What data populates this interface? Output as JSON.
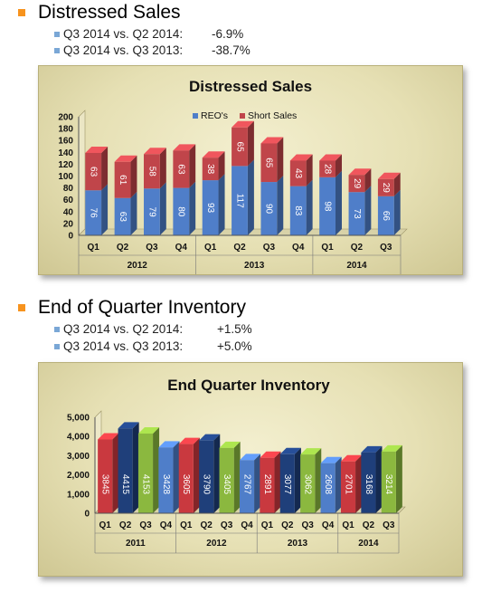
{
  "section1": {
    "heading": "Distressed Sales",
    "stats": [
      {
        "label": "Q3 2014 vs. Q2 2014:",
        "value": "-6.9%"
      },
      {
        "label": "Q3 2014 vs. Q3 2013:",
        "value": "-38.7%"
      }
    ]
  },
  "section2": {
    "heading": "End of Quarter Inventory",
    "stats": [
      {
        "label": "Q3 2014 vs. Q2 2014:",
        "value": "+1.5%"
      },
      {
        "label": "Q3 2014 vs. Q3 2013:",
        "value": "+5.0%"
      }
    ]
  },
  "chart_data": [
    {
      "type": "bar",
      "stacked": true,
      "title": "Distressed Sales",
      "legend_position": "top-right",
      "groups": [
        "2012",
        "2013",
        "2014"
      ],
      "categories": [
        "Q1",
        "Q2",
        "Q3",
        "Q4",
        "Q1",
        "Q2",
        "Q3",
        "Q4",
        "Q1",
        "Q2",
        "Q3"
      ],
      "category_group": [
        0,
        0,
        0,
        0,
        1,
        1,
        1,
        1,
        2,
        2,
        2
      ],
      "series": [
        {
          "name": "REO's",
          "color": "#4f7ec9",
          "values": [
            76,
            63,
            79,
            80,
            93,
            117,
            90,
            83,
            98,
            73,
            66
          ]
        },
        {
          "name": "Short Sales",
          "color": "#c0454a",
          "values": [
            63,
            61,
            58,
            63,
            38,
            65,
            65,
            43,
            28,
            29,
            29
          ]
        }
      ],
      "ylim": [
        0,
        200
      ],
      "yticks": [
        "0",
        "20",
        "40",
        "60",
        "80",
        "100",
        "120",
        "140",
        "160",
        "180",
        "200"
      ],
      "grid": false
    },
    {
      "type": "bar",
      "title": "End Quarter Inventory",
      "groups": [
        "2011",
        "2012",
        "2013",
        "2014"
      ],
      "categories": [
        "Q1",
        "Q2",
        "Q3",
        "Q4",
        "Q1",
        "Q2",
        "Q3",
        "Q4",
        "Q1",
        "Q2",
        "Q3",
        "Q4",
        "Q1",
        "Q2",
        "Q3"
      ],
      "category_group": [
        0,
        0,
        0,
        0,
        1,
        1,
        1,
        1,
        2,
        2,
        2,
        2,
        3,
        3,
        3
      ],
      "values": [
        3845,
        4415,
        4153,
        3428,
        3605,
        3790,
        3405,
        2767,
        2891,
        3077,
        3062,
        2608,
        2701,
        3168,
        3214
      ],
      "quarter_colors": [
        "#c9393f",
        "#1f3f7a",
        "#8bb83f",
        "#4f7ec9"
      ],
      "ylim": [
        0,
        5000
      ],
      "yticks": [
        "0",
        "1,000",
        "2,000",
        "3,000",
        "4,000",
        "5,000"
      ],
      "grid": false
    }
  ]
}
